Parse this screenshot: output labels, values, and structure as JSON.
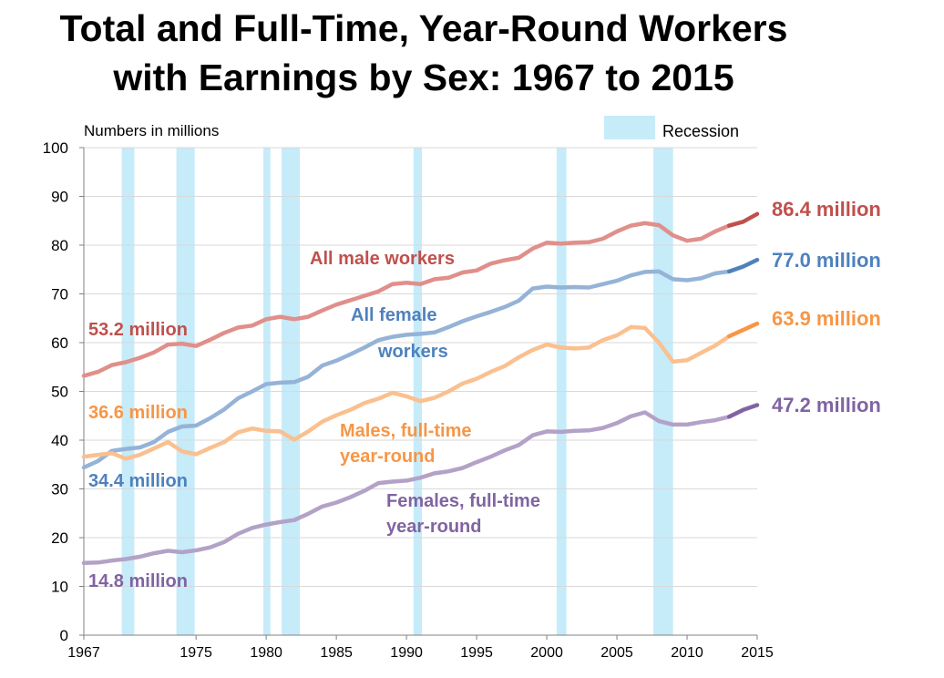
{
  "title_line1": "Total and Full-Time, Year-Round Workers",
  "title_line2": "with Earnings by Sex: 1967 to 2015",
  "chart_data": {
    "type": "line",
    "ylabel": "Numbers in millions",
    "xlim": [
      1967,
      2015
    ],
    "ylim": [
      0,
      100
    ],
    "yticks": [
      0,
      10,
      20,
      30,
      40,
      50,
      60,
      70,
      80,
      90,
      100
    ],
    "xticks": [
      1967,
      1975,
      1980,
      1985,
      1990,
      1995,
      2000,
      2005,
      2010,
      2015
    ],
    "grid": "horizontal",
    "legend": {
      "label": "Recession",
      "color": "#c6ebf9",
      "position": "top-right"
    },
    "recessions": [
      [
        1969.7,
        1970.6
      ],
      [
        1973.6,
        1974.9
      ],
      [
        1979.8,
        1980.3
      ],
      [
        1981.1,
        1982.4
      ],
      [
        1990.5,
        1991.1
      ],
      [
        2000.7,
        2001.4
      ],
      [
        2007.6,
        2009.0
      ]
    ],
    "series": [
      {
        "name": "All male workers",
        "color": "#e08f8b",
        "end_color": "#c0504d",
        "start_label": "53.2 million",
        "end_label": "86.4 million",
        "x": [
          1967,
          1968,
          1969,
          1970,
          1971,
          1972,
          1973,
          1974,
          1975,
          1976,
          1977,
          1978,
          1979,
          1980,
          1981,
          1982,
          1983,
          1984,
          1985,
          1986,
          1987,
          1988,
          1989,
          1990,
          1991,
          1992,
          1993,
          1994,
          1995,
          1996,
          1997,
          1998,
          1999,
          2000,
          2001,
          2002,
          2003,
          2004,
          2005,
          2006,
          2007,
          2008,
          2009,
          2010,
          2011,
          2012,
          2013,
          2014,
          2015
        ],
        "values": [
          53.2,
          54.0,
          55.4,
          56.0,
          56.9,
          58.0,
          59.6,
          59.8,
          59.3,
          60.6,
          62.0,
          63.1,
          63.5,
          64.8,
          65.3,
          64.8,
          65.3,
          66.6,
          67.8,
          68.7,
          69.6,
          70.5,
          72.0,
          72.3,
          72.0,
          73.0,
          73.3,
          74.4,
          74.8,
          76.2,
          76.9,
          77.4,
          79.3,
          80.5,
          80.3,
          80.5,
          80.6,
          81.3,
          82.8,
          84.0,
          84.5,
          84.1,
          82.0,
          80.9,
          81.3,
          82.8,
          84.0,
          84.8,
          86.4
        ]
      },
      {
        "name": "All female workers",
        "color": "#95b3d7",
        "end_color": "#4f81bd",
        "start_label": "34.4 million",
        "end_label": "77.0 million",
        "x": [
          1967,
          1968,
          1969,
          1970,
          1971,
          1972,
          1973,
          1974,
          1975,
          1976,
          1977,
          1978,
          1979,
          1980,
          1981,
          1982,
          1983,
          1984,
          1985,
          1986,
          1987,
          1988,
          1989,
          1990,
          1991,
          1992,
          1993,
          1994,
          1995,
          1996,
          1997,
          1998,
          1999,
          2000,
          2001,
          2002,
          2003,
          2004,
          2005,
          2006,
          2007,
          2008,
          2009,
          2010,
          2011,
          2012,
          2013,
          2014,
          2015
        ],
        "values": [
          34.4,
          35.7,
          37.8,
          38.2,
          38.5,
          39.6,
          41.7,
          42.8,
          43.0,
          44.5,
          46.3,
          48.6,
          50.0,
          51.5,
          51.8,
          51.9,
          53.0,
          55.3,
          56.3,
          57.6,
          59.0,
          60.5,
          61.2,
          61.6,
          61.8,
          62.1,
          63.2,
          64.4,
          65.4,
          66.3,
          67.3,
          68.6,
          71.1,
          71.5,
          71.3,
          71.4,
          71.3,
          72.0,
          72.7,
          73.8,
          74.5,
          74.6,
          73.0,
          72.8,
          73.2,
          74.2,
          74.6,
          75.6,
          77.0
        ]
      },
      {
        "name": "Males, full-time year-round",
        "color": "#fac08f",
        "end_color": "#f79646",
        "start_label": "36.6 million",
        "end_label": "63.9 million",
        "x": [
          1967,
          1968,
          1969,
          1970,
          1971,
          1972,
          1973,
          1974,
          1975,
          1976,
          1977,
          1978,
          1979,
          1980,
          1981,
          1982,
          1983,
          1984,
          1985,
          1986,
          1987,
          1988,
          1989,
          1990,
          1991,
          1992,
          1993,
          1994,
          1995,
          1996,
          1997,
          1998,
          1999,
          2000,
          2001,
          2002,
          2003,
          2004,
          2005,
          2006,
          2007,
          2008,
          2009,
          2010,
          2011,
          2012,
          2013,
          2014,
          2015
        ],
        "values": [
          36.6,
          37.0,
          37.3,
          36.2,
          37.0,
          38.3,
          39.6,
          37.7,
          37.1,
          38.4,
          39.6,
          41.6,
          42.4,
          41.9,
          41.8,
          40.1,
          41.8,
          43.8,
          45.1,
          46.2,
          47.6,
          48.5,
          49.7,
          49.0,
          48.0,
          48.7,
          50.0,
          51.6,
          52.6,
          54.0,
          55.2,
          57.0,
          58.5,
          59.6,
          59.0,
          58.8,
          59.0,
          60.5,
          61.5,
          63.2,
          63.0,
          60.0,
          56.1,
          56.4,
          57.9,
          59.4,
          61.3,
          62.6,
          63.9
        ]
      },
      {
        "name": "Females, full-time year-round",
        "color": "#b3a2c7",
        "end_color": "#8064a2",
        "start_label": "14.8 million",
        "end_label": "47.2 million",
        "x": [
          1967,
          1968,
          1969,
          1970,
          1971,
          1972,
          1973,
          1974,
          1975,
          1976,
          1977,
          1978,
          1979,
          1980,
          1981,
          1982,
          1983,
          1984,
          1985,
          1986,
          1987,
          1988,
          1989,
          1990,
          1991,
          1992,
          1993,
          1994,
          1995,
          1996,
          1997,
          1998,
          1999,
          2000,
          2001,
          2002,
          2003,
          2004,
          2005,
          2006,
          2007,
          2008,
          2009,
          2010,
          2011,
          2012,
          2013,
          2014,
          2015
        ],
        "values": [
          14.8,
          14.9,
          15.3,
          15.6,
          16.1,
          16.8,
          17.3,
          17.0,
          17.4,
          18.0,
          19.1,
          20.8,
          22.0,
          22.7,
          23.2,
          23.6,
          24.9,
          26.4,
          27.2,
          28.3,
          29.6,
          31.2,
          31.5,
          31.7,
          32.3,
          33.2,
          33.6,
          34.3,
          35.5,
          36.6,
          37.9,
          39.0,
          41.0,
          41.8,
          41.7,
          41.9,
          42.0,
          42.5,
          43.5,
          44.9,
          45.7,
          43.9,
          43.2,
          43.2,
          43.7,
          44.1,
          44.8,
          46.2,
          47.2
        ]
      }
    ],
    "annotations": {
      "male_all": "All male workers",
      "female_all_1": "All female",
      "female_all_2": "workers",
      "male_ft_1": "Males, full-time",
      "male_ft_2": "year-round",
      "female_ft_1": "Females, full-time",
      "female_ft_2": "year-round"
    }
  }
}
